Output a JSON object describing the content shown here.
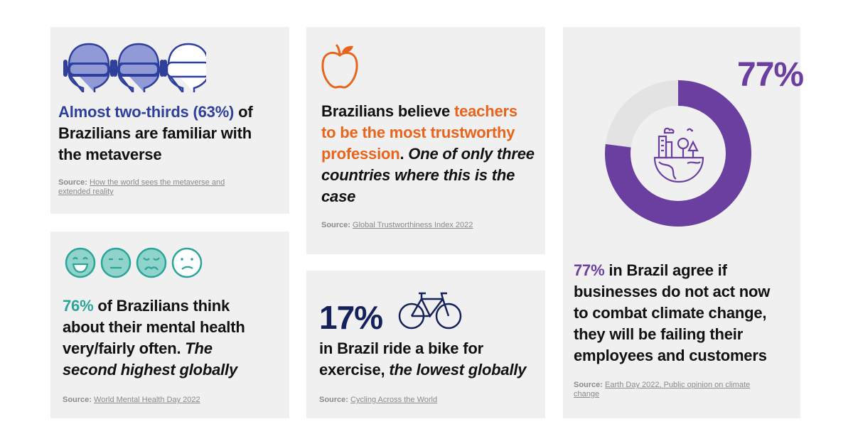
{
  "colors": {
    "card_bg": "#f0f0f0",
    "blue": "#2f3f9c",
    "orange": "#e8641c",
    "teal": "#2aa59a",
    "purple": "#6b3fa0",
    "navy": "#14215a",
    "donut_rest": "#e3e3e3"
  },
  "metaverse": {
    "icons": [
      "vr-headset-icon",
      "vr-headset-icon",
      "vr-headset-outline-icon"
    ],
    "highlight": "Almost two-thirds (63%)",
    "text_1": " of",
    "line_2": "Brazilians are familiar with",
    "line_3": "the metaverse",
    "source_label": "Source:",
    "source_link": "How the world sees the metaverse and extended reality"
  },
  "teachers": {
    "icon": "apple-icon",
    "text_1": "Brazilians believe ",
    "highlight_1": "teachers",
    "highlight_2": "to be the most trustworthy",
    "highlight_3": "profession",
    "text_2": ". ",
    "italic_1": "One of only three",
    "italic_2": "countries where this is the",
    "italic_3": "case",
    "source_label": "Source:",
    "source_link": "Global Trustworthiness Index 2022"
  },
  "climate": {
    "big_value": "77%",
    "donut_fraction": 0.77,
    "icon": "earth-city-nature-icon",
    "highlight": "77%",
    "text_1": " in Brazil agree if",
    "line_2": "businesses do not act now",
    "line_3": "to combat climate change,",
    "line_4": "they will be failing their",
    "line_5": "employees and customers",
    "source_label": "Source:",
    "source_link_1": "Earth Day 2022, Public opinion on climate",
    "source_link_2": "change"
  },
  "mental": {
    "icons": [
      "laughing-face-icon",
      "neutral-face-icon",
      "sad-face-icon",
      "confused-face-icon"
    ],
    "highlight": "76%",
    "text_1": " of Brazilians think",
    "line_2": "about their mental health",
    "line_3a": "very/fairly often. ",
    "line_3b": "The",
    "line_4": "second highest globally",
    "source_label": "Source:",
    "source_link": "World Mental Health Day 2022"
  },
  "cycling": {
    "big_value": "17%",
    "icon": "bicycle-icon",
    "line_1": "in Brazil ride a bike for",
    "line_2a": "exercise, ",
    "line_2b": "the lowest globally",
    "source_label": "Source:",
    "source_link": "Cycling Across the World"
  }
}
